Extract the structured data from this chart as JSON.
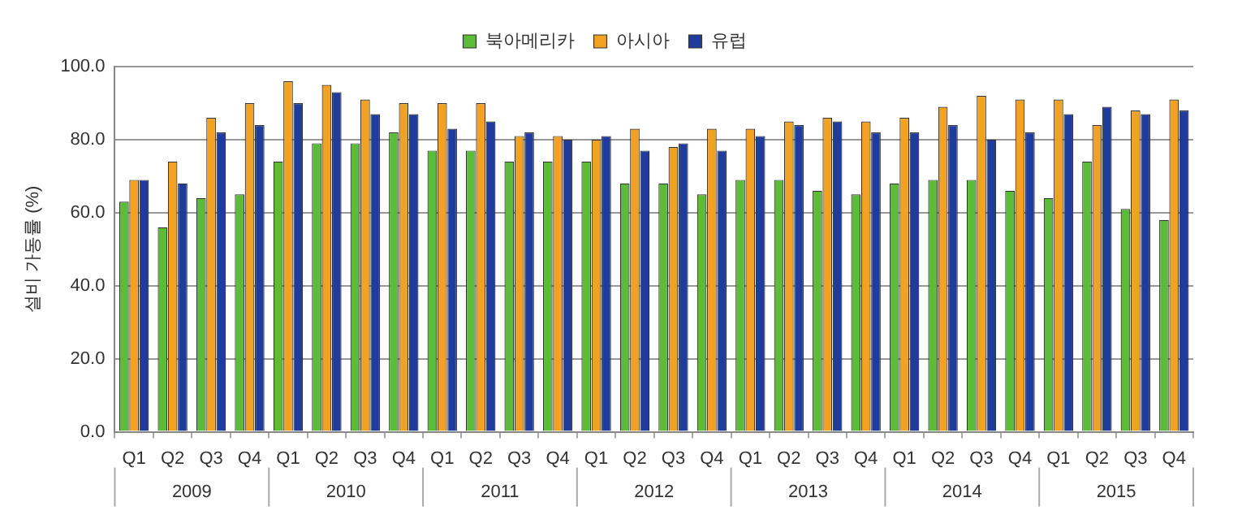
{
  "chart_data": {
    "type": "bar",
    "ylabel": "설비 가동률 (%)",
    "categories": [
      "Q1",
      "Q2",
      "Q3",
      "Q4",
      "Q1",
      "Q2",
      "Q3",
      "Q4",
      "Q1",
      "Q2",
      "Q3",
      "Q4",
      "Q1",
      "Q2",
      "Q3",
      "Q4",
      "Q1",
      "Q2",
      "Q3",
      "Q4",
      "Q1",
      "Q2",
      "Q3",
      "Q4",
      "Q1",
      "Q2",
      "Q3",
      "Q4"
    ],
    "series": [
      {
        "name": "북아메리카",
        "color": "#5dbb3a",
        "values": [
          63,
          56,
          64,
          65,
          74,
          79,
          79,
          82,
          77,
          77,
          74,
          74,
          74,
          68,
          68,
          65,
          69,
          69,
          66,
          65,
          68,
          69,
          69,
          66,
          64,
          74,
          61,
          58
        ]
      },
      {
        "name": "아시아",
        "color": "#f2a222",
        "values": [
          69,
          74,
          86,
          90,
          96,
          95,
          91,
          90,
          90,
          90,
          81,
          81,
          80,
          83,
          78,
          83,
          83,
          85,
          86,
          85,
          86,
          89,
          92,
          91,
          91,
          84,
          88,
          91
        ]
      },
      {
        "name": "유럽",
        "color": "#1f3c9c",
        "values": [
          69,
          68,
          82,
          84,
          90,
          93,
          87,
          87,
          83,
          85,
          82,
          80,
          81,
          77,
          79,
          77,
          81,
          84,
          85,
          82,
          82,
          84,
          80,
          82,
          87,
          89,
          87,
          88
        ]
      }
    ],
    "annotations": [
      "2009",
      "2010",
      "2011",
      "2012",
      "2013",
      "2014",
      "2015"
    ],
    "ylim": [
      0,
      100
    ],
    "yticks": [
      {
        "value": 0,
        "label": "0.0"
      },
      {
        "value": 20,
        "label": "20.0"
      },
      {
        "value": 40,
        "label": "40.0"
      },
      {
        "value": 60,
        "label": "60.0"
      },
      {
        "value": 80,
        "label": "80.0"
      },
      {
        "value": 100,
        "label": "100.0"
      }
    ],
    "grid": "y",
    "legend": "top"
  }
}
